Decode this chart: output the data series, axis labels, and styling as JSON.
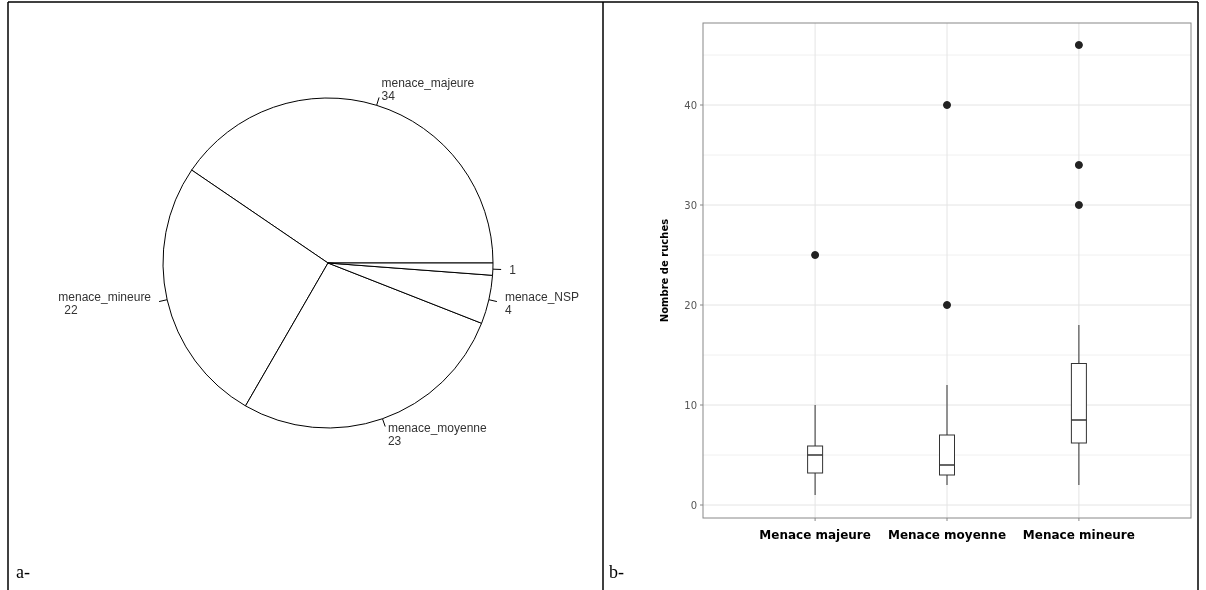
{
  "chart_data": [
    {
      "type": "pie",
      "categories": [
        "menace_majeure",
        "menace_mineure",
        "menace_moyenne",
        "menace_NSP",
        null
      ],
      "values": [
        34,
        22,
        23,
        4,
        1
      ],
      "colors": [
        "#ffffff",
        "#ffffff",
        "#ffffff",
        "#ffffff",
        "#ffffff"
      ],
      "data_labels": true,
      "annotations": [
        "a-"
      ]
    },
    {
      "type": "box",
      "categories": [
        "Menace majeure",
        "Menace moyenne",
        "Menace mineure"
      ],
      "ylabel": "Nombre de ruches",
      "ylim": [
        -1.3,
        48.2
      ],
      "yticks": [
        0,
        10,
        20,
        30,
        40
      ],
      "grid": true,
      "annotations": [
        "b-"
      ],
      "boxes": [
        {
          "low": 1,
          "q1": 3.2,
          "median": 5,
          "q3": 5.9,
          "high": 10,
          "outliers": [
            25
          ]
        },
        {
          "low": 2,
          "q1": 3,
          "median": 4,
          "q3": 7,
          "high": 12,
          "outliers": [
            20,
            40
          ]
        },
        {
          "low": 2,
          "q1": 6.2,
          "median": 8.5,
          "q3": 14.15,
          "high": 18,
          "outliers": [
            30,
            34,
            46
          ]
        }
      ]
    }
  ]
}
